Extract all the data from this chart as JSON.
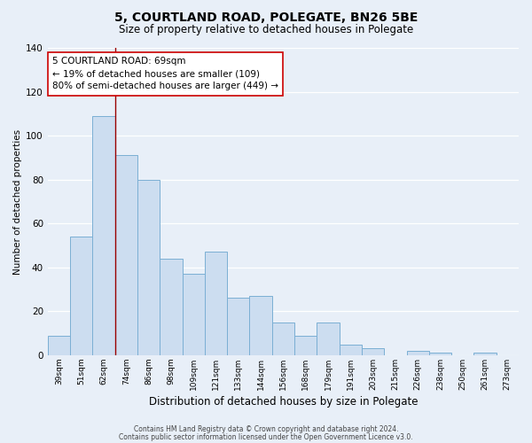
{
  "title": "5, COURTLAND ROAD, POLEGATE, BN26 5BE",
  "subtitle": "Size of property relative to detached houses in Polegate",
  "xlabel": "Distribution of detached houses by size in Polegate",
  "ylabel": "Number of detached properties",
  "bar_labels": [
    "39sqm",
    "51sqm",
    "62sqm",
    "74sqm",
    "86sqm",
    "98sqm",
    "109sqm",
    "121sqm",
    "133sqm",
    "144sqm",
    "156sqm",
    "168sqm",
    "179sqm",
    "191sqm",
    "203sqm",
    "215sqm",
    "226sqm",
    "238sqm",
    "250sqm",
    "261sqm",
    "273sqm"
  ],
  "bar_values": [
    9,
    54,
    109,
    91,
    80,
    44,
    37,
    47,
    26,
    27,
    15,
    9,
    15,
    5,
    3,
    0,
    2,
    1,
    0,
    1,
    0
  ],
  "bar_color": "#ccddf0",
  "bar_edge_color": "#7bafd4",
  "background_color": "#e8eff8",
  "grid_color": "#d0dcea",
  "vline_color": "#990000",
  "vline_x_idx": 2,
  "annotation_text": "5 COURTLAND ROAD: 69sqm\n← 19% of detached houses are smaller (109)\n80% of semi-detached houses are larger (449) →",
  "annotation_box_facecolor": "#ffffff",
  "annotation_box_edgecolor": "#cc0000",
  "ylim": [
    0,
    140
  ],
  "yticks": [
    0,
    20,
    40,
    60,
    80,
    100,
    120,
    140
  ],
  "footer_line1": "Contains HM Land Registry data © Crown copyright and database right 2024.",
  "footer_line2": "Contains public sector information licensed under the Open Government Licence v3.0."
}
